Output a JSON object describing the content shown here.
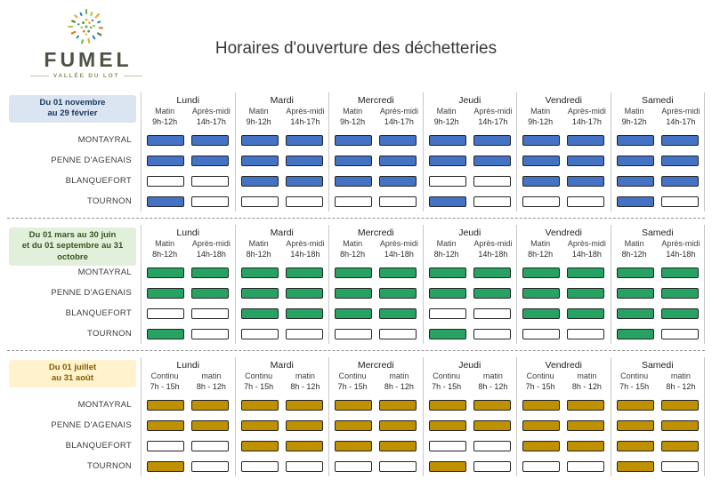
{
  "logo": {
    "name": "FUMEL",
    "subtitle": "VALLÉE DU LOT"
  },
  "title": "Horaires d'ouverture des déchetteries",
  "days": [
    "Lundi",
    "Mardi",
    "Mercredi",
    "Jeudi",
    "Vendredi",
    "Samedi"
  ],
  "sites": [
    "MONTAYRAL",
    "PENNE D'AGENAIS",
    "BLANQUEFORT",
    "TOURNON"
  ],
  "sections": [
    {
      "name": "winter",
      "period_lines": [
        "Du 01 novembre",
        "au 29 février"
      ],
      "columns": [
        {
          "label": "Matin",
          "time": "9h-12h"
        },
        {
          "label": "Après-midi",
          "time": "14h-17h"
        }
      ],
      "fill_color": "#4472c4",
      "box_bg": "#dbe5f1",
      "box_text": "#17375e",
      "rows": [
        {
          "site": "MONTAYRAL",
          "open": [
            [
              1,
              1
            ],
            [
              1,
              1
            ],
            [
              1,
              1
            ],
            [
              1,
              1
            ],
            [
              1,
              1
            ],
            [
              1,
              1
            ]
          ]
        },
        {
          "site": "PENNE D'AGENAIS",
          "open": [
            [
              1,
              1
            ],
            [
              1,
              1
            ],
            [
              1,
              1
            ],
            [
              1,
              1
            ],
            [
              1,
              1
            ],
            [
              1,
              1
            ]
          ]
        },
        {
          "site": "BLANQUEFORT",
          "open": [
            [
              0,
              0
            ],
            [
              1,
              1
            ],
            [
              1,
              1
            ],
            [
              0,
              0
            ],
            [
              1,
              1
            ],
            [
              1,
              1
            ]
          ]
        },
        {
          "site": "TOURNON",
          "open": [
            [
              1,
              0
            ],
            [
              0,
              0
            ],
            [
              0,
              0
            ],
            [
              1,
              0
            ],
            [
              0,
              0
            ],
            [
              1,
              0
            ]
          ]
        }
      ]
    },
    {
      "name": "spring-autumn",
      "period_lines": [
        "Du 01 mars au 30 juin",
        "et du 01 septembre au 31",
        "octobre"
      ],
      "columns": [
        {
          "label": "Matin",
          "time": "8h-12h"
        },
        {
          "label": "Après-midi",
          "time": "14h-18h"
        }
      ],
      "fill_color": "#28a263",
      "box_bg": "#e2efda",
      "box_text": "#375623",
      "rows": [
        {
          "site": "MONTAYRAL",
          "open": [
            [
              1,
              1
            ],
            [
              1,
              1
            ],
            [
              1,
              1
            ],
            [
              1,
              1
            ],
            [
              1,
              1
            ],
            [
              1,
              1
            ]
          ]
        },
        {
          "site": "PENNE D'AGENAIS",
          "open": [
            [
              1,
              1
            ],
            [
              1,
              1
            ],
            [
              1,
              1
            ],
            [
              1,
              1
            ],
            [
              1,
              1
            ],
            [
              1,
              1
            ]
          ]
        },
        {
          "site": "BLANQUEFORT",
          "open": [
            [
              0,
              0
            ],
            [
              1,
              1
            ],
            [
              1,
              1
            ],
            [
              0,
              0
            ],
            [
              1,
              1
            ],
            [
              1,
              1
            ]
          ]
        },
        {
          "site": "TOURNON",
          "open": [
            [
              1,
              0
            ],
            [
              0,
              0
            ],
            [
              0,
              0
            ],
            [
              1,
              0
            ],
            [
              0,
              0
            ],
            [
              1,
              0
            ]
          ]
        }
      ]
    },
    {
      "name": "summer",
      "period_lines": [
        "Du 01 juillet",
        "au 31 août"
      ],
      "columns": [
        {
          "label": "Continu",
          "time": "7h - 15h"
        },
        {
          "label": "matin",
          "time": "8h - 12h"
        }
      ],
      "fill_color": "#bf9000",
      "box_bg": "#fff2cc",
      "box_text": "#7f6000",
      "rows": [
        {
          "site": "MONTAYRAL",
          "open": [
            [
              1,
              1
            ],
            [
              1,
              1
            ],
            [
              1,
              1
            ],
            [
              1,
              1
            ],
            [
              1,
              1
            ],
            [
              1,
              1
            ]
          ]
        },
        {
          "site": "PENNE D'AGENAIS",
          "open": [
            [
              1,
              1
            ],
            [
              1,
              1
            ],
            [
              1,
              1
            ],
            [
              1,
              1
            ],
            [
              1,
              1
            ],
            [
              1,
              1
            ]
          ]
        },
        {
          "site": "BLANQUEFORT",
          "open": [
            [
              0,
              0
            ],
            [
              1,
              1
            ],
            [
              1,
              1
            ],
            [
              0,
              0
            ],
            [
              1,
              1
            ],
            [
              1,
              1
            ]
          ]
        },
        {
          "site": "TOURNON",
          "open": [
            [
              1,
              0
            ],
            [
              0,
              0
            ],
            [
              0,
              0
            ],
            [
              1,
              0
            ],
            [
              0,
              0
            ],
            [
              1,
              0
            ]
          ]
        }
      ]
    }
  ]
}
